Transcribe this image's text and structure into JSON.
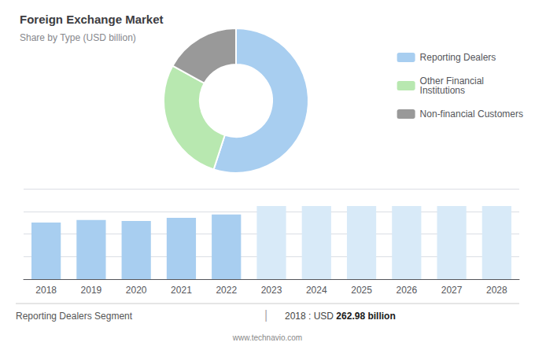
{
  "chart_data": [
    {
      "type": "pie",
      "title": "Foreign Exchange Market",
      "subtitle": "Share by Type (USD billion)",
      "categories": [
        "Reporting Dealers",
        "Other Financial\nInstitutions",
        "Non-financial Customers"
      ],
      "values": [
        55,
        28,
        17
      ],
      "colors": [
        "#a8cef0",
        "#b8e8b0",
        "#999999"
      ],
      "legend": "right"
    },
    {
      "type": "bar",
      "categories": [
        "2018",
        "2019",
        "2020",
        "2021",
        "2022",
        "2023",
        "2024",
        "2025",
        "2026",
        "2027",
        "2028"
      ],
      "values": [
        263,
        275,
        270,
        285,
        300,
        340,
        340,
        340,
        340,
        340,
        340
      ],
      "colors": [
        "#a8cef0",
        "#a8cef0",
        "#a8cef0",
        "#a8cef0",
        "#a8cef0",
        "#d8eaf8",
        "#d8eaf8",
        "#d8eaf8",
        "#d8eaf8",
        "#d8eaf8",
        "#d8eaf8"
      ],
      "ylim": [
        0,
        420
      ],
      "yticks": [
        0,
        105,
        210,
        315,
        420
      ],
      "grid": true,
      "tick_labels": "x",
      "annotations": [
        "Reporting Dealers Segment",
        "|",
        "2018 : USD ",
        "262.98 billion",
        "www.technavio.com"
      ]
    }
  ]
}
